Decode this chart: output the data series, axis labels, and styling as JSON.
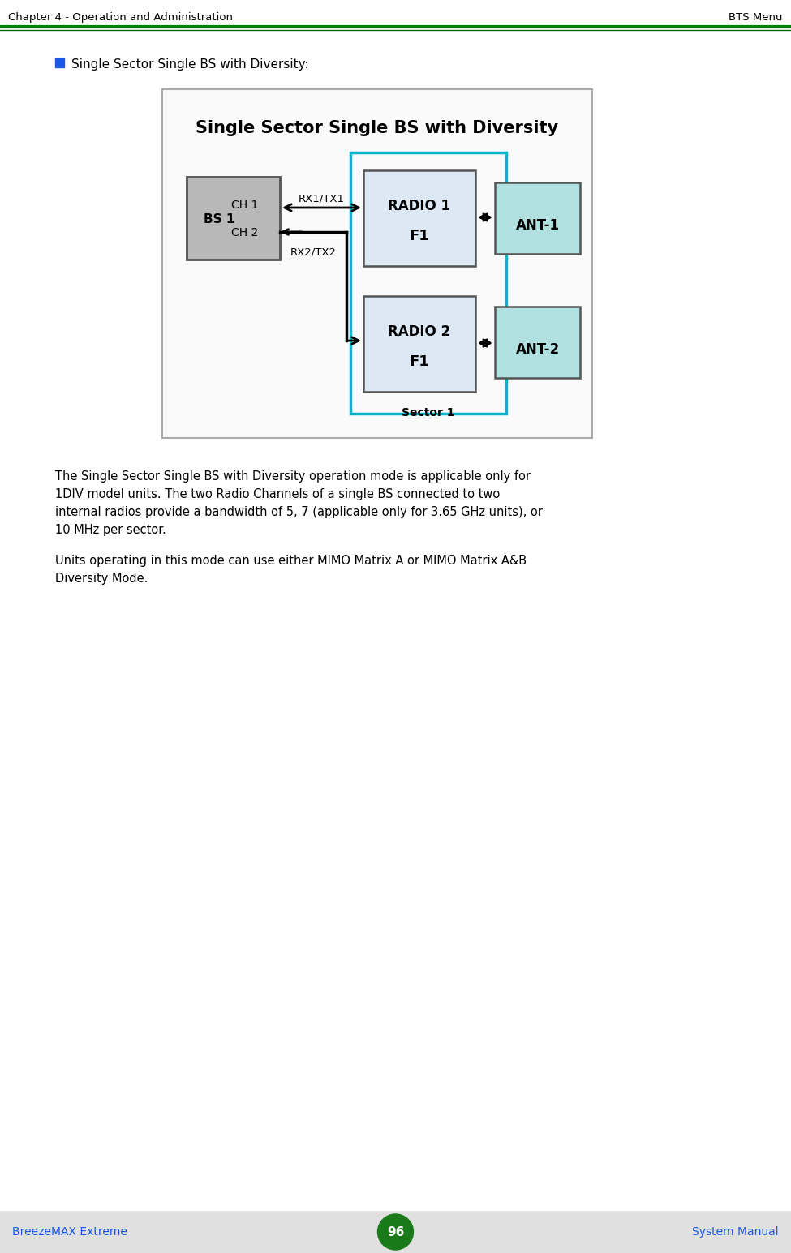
{
  "title_header_left": "Chapter 4 - Operation and Administration",
  "title_header_right": "BTS Menu",
  "header_line_color1": "#008000",
  "header_line_color2": "#006600",
  "bullet_text": "Single Sector Single BS with Diversity:",
  "bullet_color": "#1a56e8",
  "diagram_title": "Single Sector Single BS with Diversity",
  "diagram_bg": "#fafafa",
  "diagram_border": "#aaaaaa",
  "bs_box_color": "#b8b8b8",
  "bs_box_edge": "#555555",
  "radio_box_color": "#dde8f5",
  "radio_box_edge": "#555555",
  "ant_box_color": "#b0e0e0",
  "ant_box_edge": "#555555",
  "sector_border_color": "#00b8c8",
  "arrow_color": "#000000",
  "body_text_1a": "The Single Sector Single BS with Diversity operation mode is applicable only for",
  "body_text_1b": "1DIV model units. The two Radio Channels of a single BS connected to two",
  "body_text_1c": "internal radios provide a bandwidth of 5, 7 (applicable only for 3.65 GHz units), or",
  "body_text_1d": "10 MHz per sector.",
  "body_text_2a": "Units operating in this mode can use either MIMO Matrix A or MIMO Matrix A&B",
  "body_text_2b": "Diversity Mode.",
  "footer_left": "BreezeMAX Extreme",
  "footer_center": "96",
  "footer_right": "System Manual",
  "footer_bg": "#e0e0e0",
  "footer_text_color": "#1a56e8",
  "footer_circle_color": "#1a7a1a",
  "page_bg": "#ffffff"
}
